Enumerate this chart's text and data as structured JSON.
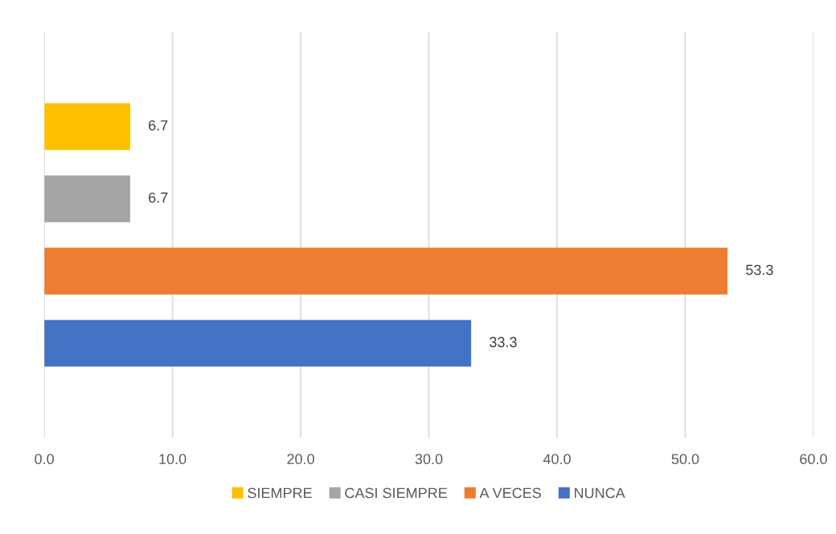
{
  "chart_data": {
    "type": "bar",
    "orientation": "horizontal",
    "categories": [
      null
    ],
    "series": [
      {
        "name": "SIEMPRE",
        "color": "#ffc000",
        "values": [
          6.7
        ]
      },
      {
        "name": "CASI SIEMPRE",
        "color": "#a5a5a5",
        "values": [
          6.7
        ]
      },
      {
        "name": "A VECES",
        "color": "#ed7d31",
        "values": [
          53.3
        ]
      },
      {
        "name": "NUNCA",
        "color": "#4472c4",
        "values": [
          33.3
        ]
      }
    ],
    "xlim": [
      0,
      60
    ],
    "xticks": [
      {
        "value": 0,
        "label": "0.0"
      },
      {
        "value": 10,
        "label": "10.0"
      },
      {
        "value": 20,
        "label": "20.0"
      },
      {
        "value": 30,
        "label": "30.0"
      },
      {
        "value": 40,
        "label": "40.0"
      },
      {
        "value": 50,
        "label": "50.0"
      },
      {
        "value": 60,
        "label": "60.0"
      }
    ],
    "grid": "x",
    "legend": "bottom",
    "data_labels": true
  }
}
